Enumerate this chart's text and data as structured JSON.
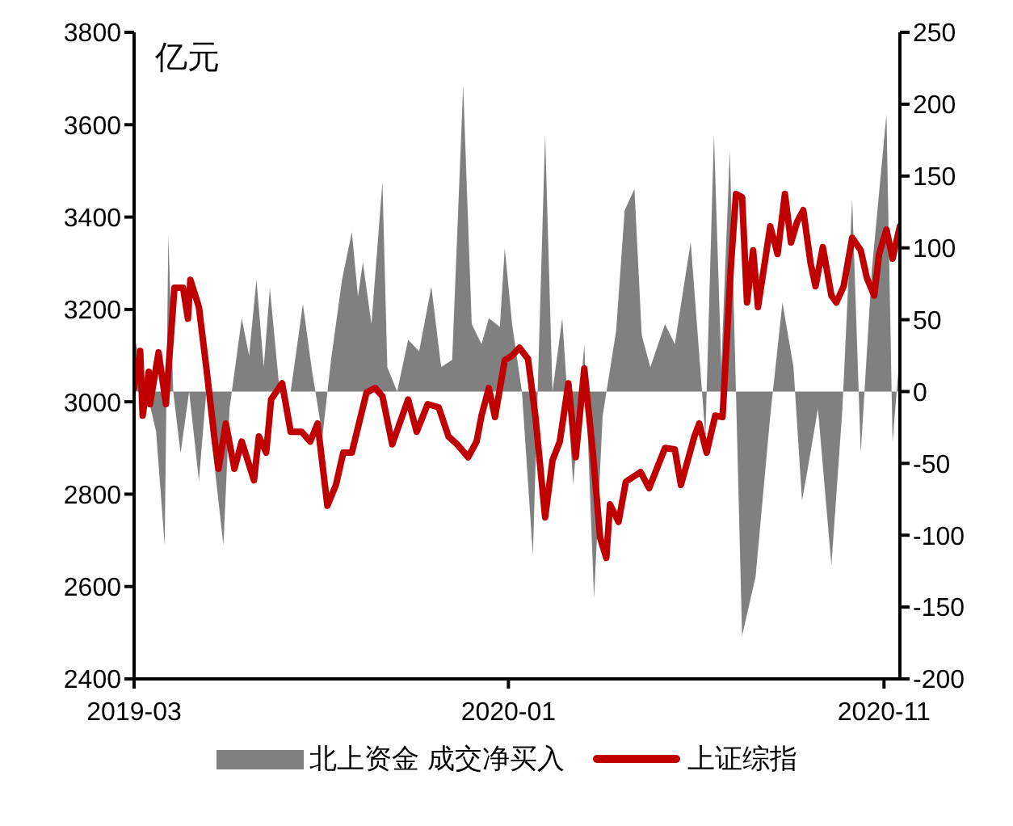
{
  "chart_data": {
    "type": "line",
    "annotations": [
      "亿元"
    ],
    "xlim": [
      "2019-03-01",
      "2020-11-16"
    ],
    "xticks": [
      {
        "value": "2019-03-01",
        "label": "2019-03"
      },
      {
        "value": "2020-01-01",
        "label": "2020-01"
      },
      {
        "value": "2020-11-03",
        "label": "2020-11"
      }
    ],
    "ylim": [
      2400,
      3800
    ],
    "yticks": [
      2400,
      2600,
      2800,
      3000,
      3200,
      3400,
      3600,
      3800
    ],
    "y2lim": [
      -200,
      250
    ],
    "y2ticks": [
      -200,
      -150,
      -100,
      -50,
      0,
      50,
      100,
      150,
      200,
      250
    ],
    "grid": false,
    "legend": "bottom",
    "marker": "none",
    "line_style": "solid",
    "series": [
      {
        "name": "北上资金 成交净买入",
        "type": "area",
        "axis": "y2",
        "color": "#808080",
        "x": [
          "2019-03-01",
          "2019-03-19",
          "2019-03-26",
          "2019-03-29",
          "2019-04-02",
          "2019-04-08",
          "2019-04-15",
          "2019-04-23",
          "2019-04-29",
          "2019-05-13",
          "2019-05-18",
          "2019-05-28",
          "2019-06-03",
          "2019-06-09",
          "2019-06-15",
          "2019-06-20",
          "2019-06-28",
          "2019-07-07",
          "2019-07-17",
          "2019-07-24",
          "2019-08-02",
          "2019-08-09",
          "2019-08-18",
          "2019-08-26",
          "2019-08-31",
          "2019-09-04",
          "2019-09-11",
          "2019-09-20",
          "2019-09-24",
          "2019-10-02",
          "2019-10-11",
          "2019-10-20",
          "2019-10-30",
          "2019-11-07",
          "2019-11-16",
          "2019-11-25",
          "2019-12-02",
          "2019-12-10",
          "2019-12-16",
          "2019-12-25",
          "2019-12-29",
          "2020-01-04",
          "2020-01-12",
          "2020-01-21",
          "2020-01-31",
          "2020-02-06",
          "2020-02-14",
          "2020-02-23",
          "2020-03-03",
          "2020-03-11",
          "2020-03-18",
          "2020-03-29",
          "2020-04-05",
          "2020-04-13",
          "2020-04-19",
          "2020-04-26",
          "2020-05-08",
          "2020-05-16",
          "2020-05-29",
          "2020-06-10",
          "2020-06-17",
          "2020-06-23",
          "2020-06-30",
          "2020-07-10",
          "2020-07-21",
          "2020-08-02",
          "2020-08-12",
          "2020-08-21",
          "2020-08-28",
          "2020-09-01",
          "2020-09-10",
          "2020-09-21",
          "2020-09-30",
          "2020-10-08",
          "2020-10-15",
          "2020-10-24",
          "2020-11-05",
          "2020-11-10",
          "2020-11-15"
        ],
        "values": [
          39,
          -28,
          -107,
          109,
          0,
          -43,
          0,
          -62,
          0,
          -107,
          -12,
          51,
          25,
          78,
          17,
          72,
          0,
          0,
          61,
          17,
          -31,
          22,
          78,
          111,
          66,
          90,
          47,
          146,
          17,
          0,
          36,
          28,
          73,
          17,
          22,
          213,
          47,
          33,
          51,
          45,
          100,
          47,
          0,
          -114,
          179,
          0,
          51,
          -65,
          33,
          -144,
          -17,
          42,
          126,
          141,
          39,
          17,
          47,
          33,
          104,
          -31,
          179,
          17,
          168,
          -170,
          -129,
          -17,
          62,
          17,
          -76,
          -57,
          -12,
          -121,
          -12,
          134,
          -43,
          84,
          193,
          -35,
          17
        ]
      },
      {
        "name": "上证综指",
        "color": "#c00000",
        "x": [
          "2019-03-01",
          "2019-03-06",
          "2019-03-08",
          "2019-03-13",
          "2019-03-14",
          "2019-03-21",
          "2019-03-27",
          "2019-04-03",
          "2019-04-10",
          "2019-04-14",
          "2019-04-16",
          "2019-04-23",
          "2019-04-29",
          "2019-05-06",
          "2019-05-09",
          "2019-05-15",
          "2019-05-22",
          "2019-05-28",
          "2019-06-07",
          "2019-06-11",
          "2019-06-17",
          "2019-06-21",
          "2019-06-30",
          "2019-07-07",
          "2019-07-16",
          "2019-07-23",
          "2019-07-29",
          "2019-08-06",
          "2019-08-13",
          "2019-08-19",
          "2019-08-26",
          "2019-09-07",
          "2019-09-14",
          "2019-09-20",
          "2019-09-28",
          "2019-10-11",
          "2019-10-18",
          "2019-10-27",
          "2019-11-05",
          "2019-11-13",
          "2019-11-20",
          "2019-11-29",
          "2019-12-06",
          "2019-12-10",
          "2019-12-16",
          "2019-12-21",
          "2019-12-29",
          "2020-01-04",
          "2020-01-10",
          "2020-01-17",
          "2020-01-23",
          "2020-01-31",
          "2020-02-06",
          "2020-02-12",
          "2020-02-19",
          "2020-02-25",
          "2020-03-03",
          "2020-03-10",
          "2020-03-16",
          "2020-03-21",
          "2020-03-24",
          "2020-03-31",
          "2020-04-06",
          "2020-04-18",
          "2020-04-25",
          "2020-05-08",
          "2020-05-16",
          "2020-05-21",
          "2020-06-01",
          "2020-06-05",
          "2020-06-11",
          "2020-06-18",
          "2020-06-24",
          "2020-07-01",
          "2020-07-05",
          "2020-07-10",
          "2020-07-14",
          "2020-07-19",
          "2020-07-23",
          "2020-08-02",
          "2020-08-08",
          "2020-08-14",
          "2020-08-19",
          "2020-08-24",
          "2020-08-29",
          "2020-09-04",
          "2020-09-08",
          "2020-09-14",
          "2020-09-21",
          "2020-09-25",
          "2020-10-01",
          "2020-10-08",
          "2020-10-15",
          "2020-10-20",
          "2020-10-26",
          "2020-10-30",
          "2020-11-05",
          "2020-11-10",
          "2020-11-16"
        ],
        "values": [
          3030,
          3110,
          2970,
          3065,
          2995,
          3107,
          2995,
          3247,
          3247,
          3180,
          3264,
          3205,
          3075,
          2914,
          2855,
          2953,
          2855,
          2914,
          2830,
          2925,
          2890,
          3005,
          3040,
          2935,
          2935,
          2914,
          2953,
          2775,
          2820,
          2890,
          2890,
          3020,
          3030,
          3012,
          2908,
          3005,
          2935,
          2995,
          2988,
          2925,
          2908,
          2880,
          2914,
          2970,
          3030,
          2967,
          3090,
          3100,
          3117,
          3093,
          2970,
          2750,
          2873,
          2914,
          3040,
          2880,
          3072,
          2890,
          2705,
          2662,
          2778,
          2740,
          2827,
          2848,
          2813,
          2900,
          2897,
          2820,
          2925,
          2953,
          2890,
          2970,
          2967,
          3300,
          3450,
          3443,
          3215,
          3328,
          3205,
          3380,
          3320,
          3450,
          3345,
          3390,
          3415,
          3300,
          3250,
          3335,
          3230,
          3215,
          3250,
          3355,
          3328,
          3268,
          3230,
          3320,
          3373,
          3310,
          3380
        ]
      }
    ]
  }
}
